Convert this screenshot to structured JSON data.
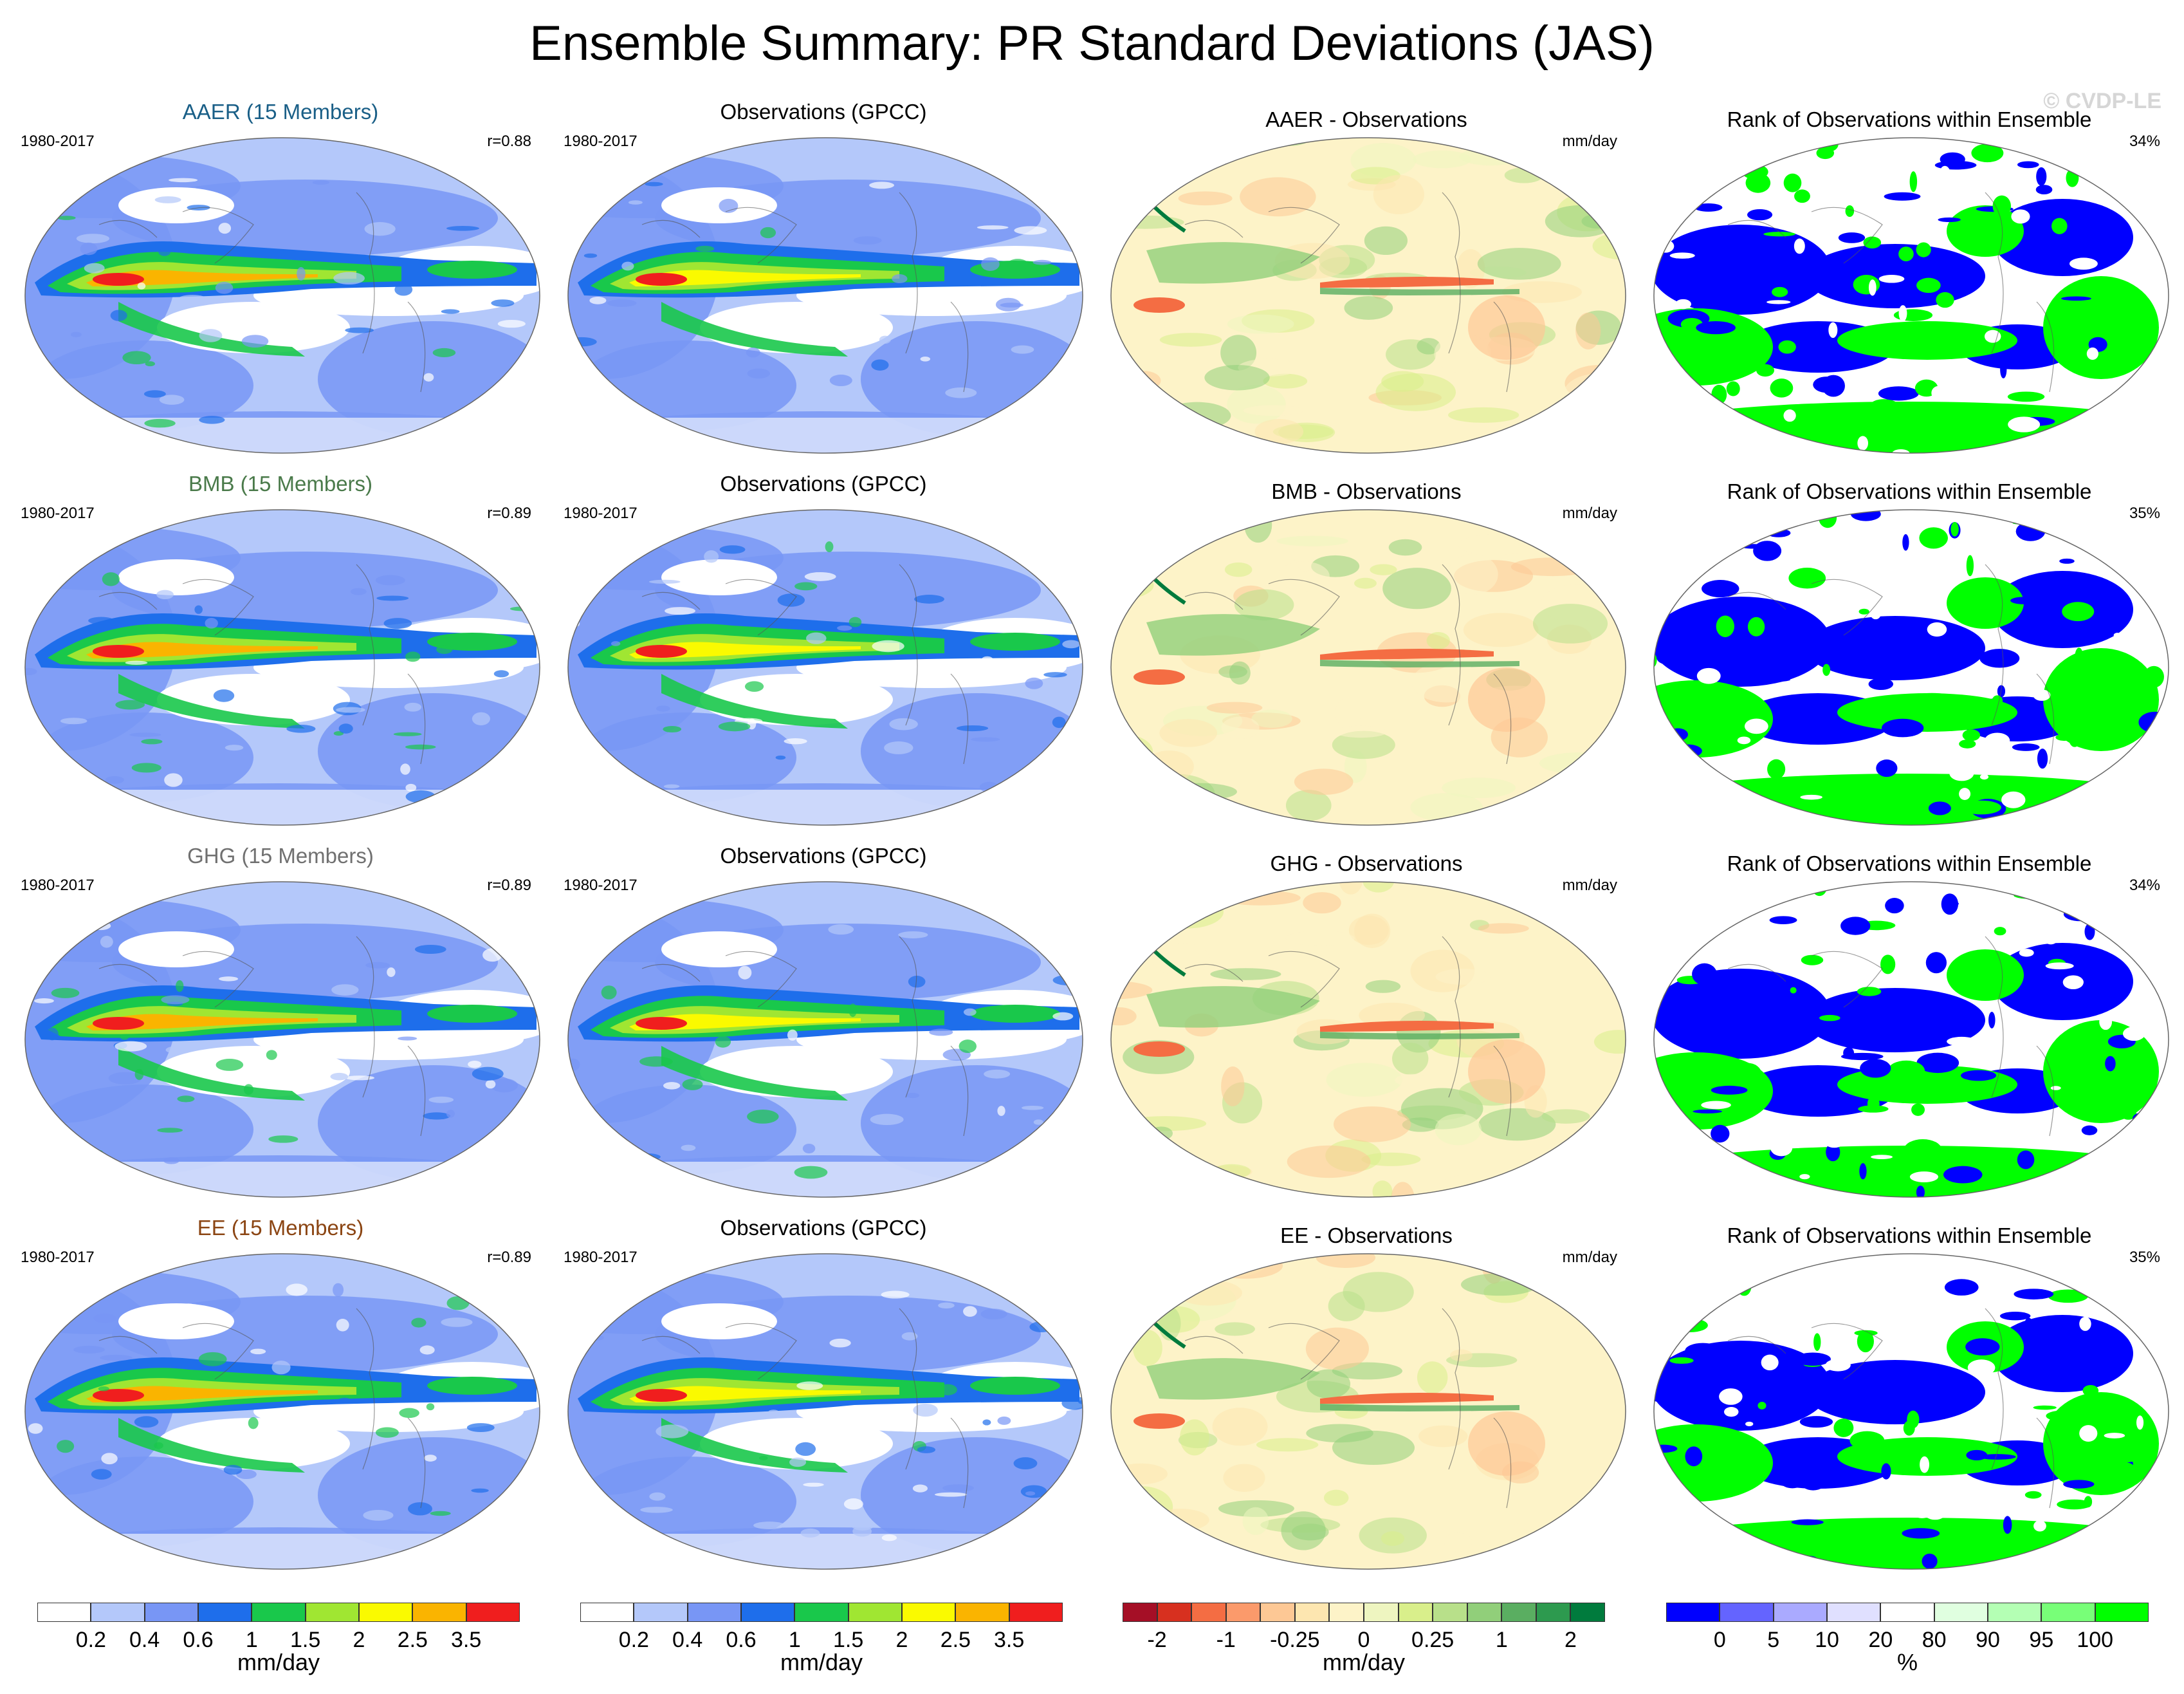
{
  "title": "Ensemble Summary: PR Standard Deviations (JAS)",
  "watermark": "© CVDP-LE",
  "palettes": {
    "sd": [
      "#ffffff",
      "#b4c8fa",
      "#7896f5",
      "#1e6eeb",
      "#19c84b",
      "#a0e632",
      "#fafa00",
      "#fab400",
      "#f01e1e"
    ],
    "diff": [
      "#a50f26",
      "#d7301f",
      "#f46d43",
      "#fb9a6b",
      "#fdc895",
      "#fde6b0",
      "#fdf3c8",
      "#eef5c0",
      "#d9ef8b",
      "#b8e08a",
      "#91cf7a",
      "#5aae61",
      "#2d9a4f",
      "#007b3d"
    ],
    "rank": [
      "#0000ff",
      "#6464ff",
      "#aaaaff",
      "#e0e0ff",
      "#ffffff",
      "#e0ffe0",
      "#b4ffb4",
      "#78ff78",
      "#00ff00"
    ]
  },
  "rows": [
    {
      "model": {
        "title": "AAER (15 Members)",
        "color": "#1a5f87",
        "period": "1980-2017",
        "stat": "r=0.88"
      },
      "obs": {
        "title": "Observations (GPCC)",
        "period": "1980-2017"
      },
      "diff": {
        "title": "AAER - Observations",
        "units": "mm/day"
      },
      "rank": {
        "title": "Rank of Observations within Ensemble",
        "pct": "34%"
      }
    },
    {
      "model": {
        "title": "BMB (15 Members)",
        "color": "#4a7a4a",
        "period": "1980-2017",
        "stat": "r=0.89"
      },
      "obs": {
        "title": "Observations (GPCC)",
        "period": "1980-2017"
      },
      "diff": {
        "title": "BMB - Observations",
        "units": "mm/day"
      },
      "rank": {
        "title": "Rank of Observations within Ensemble",
        "pct": "35%"
      }
    },
    {
      "model": {
        "title": "GHG (15 Members)",
        "color": "#707070",
        "period": "1980-2017",
        "stat": "r=0.89"
      },
      "obs": {
        "title": "Observations (GPCC)",
        "period": "1980-2017"
      },
      "diff": {
        "title": "GHG - Observations",
        "units": "mm/day"
      },
      "rank": {
        "title": "Rank of Observations within Ensemble",
        "pct": "34%"
      }
    },
    {
      "model": {
        "title": "EE (15 Members)",
        "color": "#8b4513",
        "period": "1980-2017",
        "stat": "r=0.89"
      },
      "obs": {
        "title": "Observations (GPCC)",
        "period": "1980-2017"
      },
      "diff": {
        "title": "EE - Observations",
        "units": "mm/day"
      },
      "rank": {
        "title": "Rank of Observations within Ensemble",
        "pct": "35%"
      }
    }
  ],
  "colorbars": [
    {
      "name": "sd-model",
      "palette": "sd",
      "ticks": [
        "0.2",
        "0.4",
        "0.6",
        "1",
        "1.5",
        "2",
        "2.5",
        "3.5"
      ],
      "unit": "mm/day"
    },
    {
      "name": "sd-obs",
      "palette": "sd",
      "ticks": [
        "0.2",
        "0.4",
        "0.6",
        "1",
        "1.5",
        "2",
        "2.5",
        "3.5"
      ],
      "unit": "mm/day"
    },
    {
      "name": "diff",
      "palette": "diff",
      "ticks": [
        "-2",
        "-1",
        "-0.25",
        "0",
        "0.25",
        "1",
        "2"
      ],
      "unit": "mm/day"
    },
    {
      "name": "rank",
      "palette": "rank",
      "ticks": [
        "0",
        "5",
        "10",
        "20",
        "80",
        "90",
        "95",
        "100"
      ],
      "unit": "%"
    }
  ]
}
